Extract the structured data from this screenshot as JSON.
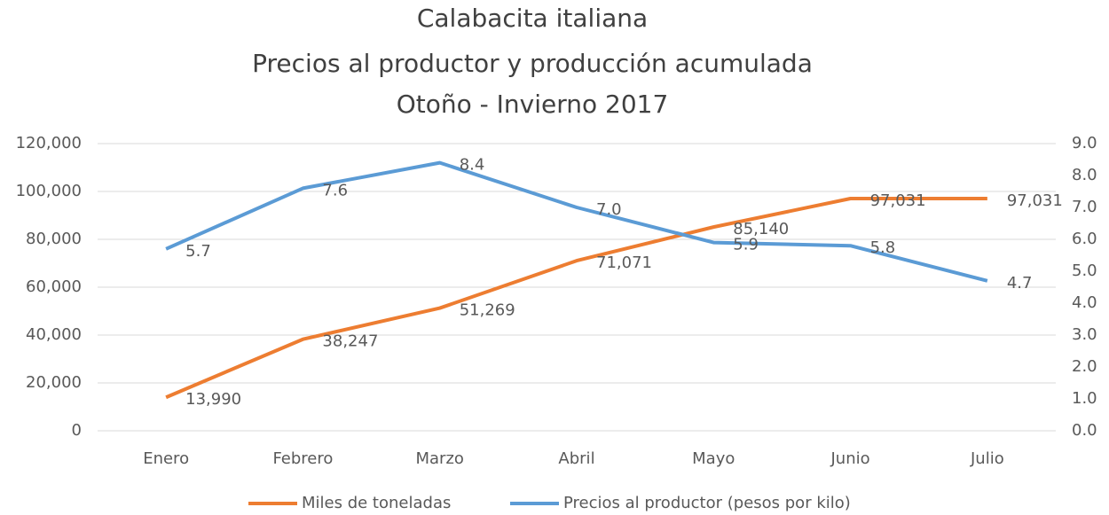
{
  "chart_data": {
    "type": "line",
    "title": [
      "Calabacita italiana",
      "Precios al productor y producción acumulada",
      "Otoño - Invierno 2017"
    ],
    "categories": [
      "Enero",
      "Febrero",
      "Marzo",
      "Abril",
      "Mayo",
      "Junio",
      "Julio"
    ],
    "series": [
      {
        "name": "Miles de toneladas",
        "color": "#ed7d31",
        "axis": "y",
        "values": [
          13990,
          38247,
          51269,
          71071,
          85140,
          97031,
          97031
        ],
        "value_labels": [
          "13,990",
          "38,247",
          "51,269",
          "71,071",
          "85,140",
          "97,031",
          "97,031"
        ]
      },
      {
        "name": "Precios al productor (pesos por kilo)",
        "color": "#5b9bd5",
        "axis": "y2",
        "values": [
          5.7,
          7.6,
          8.4,
          7.0,
          5.9,
          5.8,
          4.7
        ],
        "value_labels": [
          "5.7",
          "7.6",
          "8.4",
          "7.0",
          "5.9",
          "5.8",
          "4.7"
        ]
      }
    ],
    "ylim": [
      0,
      120000
    ],
    "yticks": [
      0,
      {
        "value": 20000,
        "label": "20,000"
      },
      {
        "value": 40000,
        "label": "40,000"
      },
      {
        "value": 60000,
        "label": "60,000"
      },
      {
        "value": 80000,
        "label": "80,000"
      },
      {
        "value": 100000,
        "label": "100,000"
      },
      {
        "value": 120000,
        "label": "120,000"
      }
    ],
    "y2lim": [
      0,
      9
    ],
    "y2ticks": [
      {
        "value": 0,
        "label": "0.0"
      },
      {
        "value": 1,
        "label": "1.0"
      },
      {
        "value": 2,
        "label": "2.0"
      },
      {
        "value": 3,
        "label": "3.0"
      },
      {
        "value": 4,
        "label": "4.0"
      },
      {
        "value": 5,
        "label": "5.0"
      },
      {
        "value": 6,
        "label": "6.0"
      },
      {
        "value": 7,
        "label": "7.0"
      },
      {
        "value": 8,
        "label": "8.0"
      },
      {
        "value": 9,
        "label": "9.0"
      }
    ],
    "grid": true,
    "legend": "bottom"
  }
}
